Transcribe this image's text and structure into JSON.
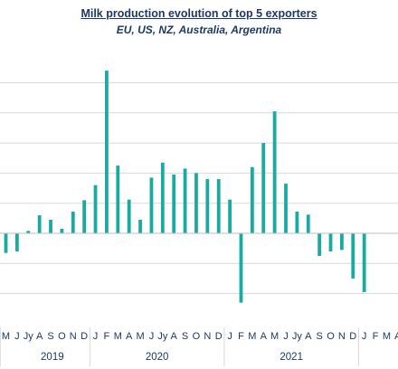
{
  "chart_data": {
    "type": "bar",
    "title": "Milk production evolution  of top 5 exporters",
    "subtitle": "EU, US, NZ, Australia, Argentina",
    "xlabel": "",
    "ylabel": "",
    "grid": true,
    "legend": "none",
    "color": "#1aaba0",
    "ylim": [
      -2.5,
      5.5
    ],
    "yticks": [
      -2,
      -1,
      0,
      1,
      2,
      3,
      4,
      5
    ],
    "categories": [
      "M",
      "J",
      "Jy",
      "A",
      "S",
      "O",
      "N",
      "D",
      "J",
      "F",
      "M",
      "A",
      "M",
      "J",
      "Jy",
      "A",
      "S",
      "O",
      "N",
      "D",
      "J",
      "F",
      "M",
      "A",
      "M",
      "J",
      "Jy",
      "A",
      "S",
      "O",
      "N",
      "D",
      "J",
      "F",
      "M",
      "A"
    ],
    "values": [
      -0.65,
      -0.6,
      0.08,
      0.6,
      0.45,
      0.15,
      0.72,
      1.1,
      1.6,
      5.4,
      2.25,
      1.12,
      0.45,
      1.85,
      2.35,
      1.95,
      2.15,
      2.0,
      1.8,
      1.8,
      1.12,
      -2.3,
      2.2,
      3.0,
      4.05,
      1.65,
      0.72,
      0.62,
      -0.75,
      -0.6,
      -0.55,
      -1.5,
      -1.95,
      null,
      null,
      null
    ],
    "years": [
      {
        "label": "2019",
        "from": 0,
        "to": 7
      },
      {
        "label": "2020",
        "from": 8,
        "to": 19
      },
      {
        "label": "2021",
        "from": 20,
        "to": 31
      }
    ]
  }
}
